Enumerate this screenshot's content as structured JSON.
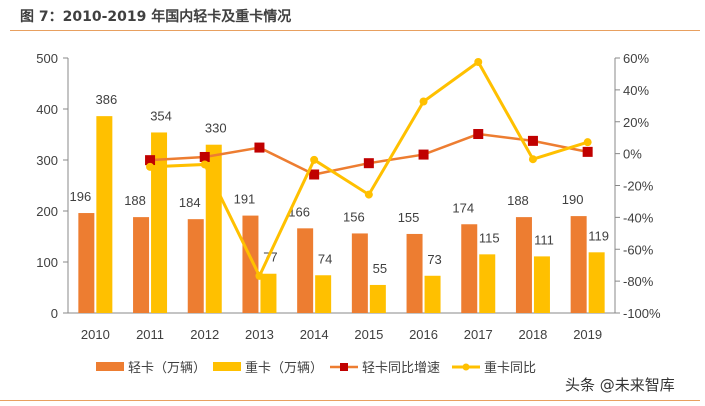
{
  "title": "图 7：2010-2019 年国内轻卡及重卡情况",
  "watermark": "头条 @未来智库",
  "chart_data": {
    "type": "bar+line",
    "title": "图 7：2010-2019 年国内轻卡及重卡情况",
    "categories": [
      "2010",
      "2011",
      "2012",
      "2013",
      "2014",
      "2015",
      "2016",
      "2017",
      "2018",
      "2019"
    ],
    "y_left": {
      "range": [
        0,
        500
      ],
      "ticks": [
        0,
        100,
        200,
        300,
        400,
        500
      ]
    },
    "y_right": {
      "range": [
        -100,
        60
      ],
      "ticks": [
        "-100%",
        "-80%",
        "-60%",
        "-40%",
        "-20%",
        "0%",
        "20%",
        "40%",
        "60%"
      ]
    },
    "grid": false,
    "legend_position": "bottom",
    "series": [
      {
        "name": "轻卡（万辆）",
        "type": "bar",
        "axis": "left",
        "color": "#ED7D31",
        "values": [
          196,
          188,
          184,
          191,
          166,
          156,
          155,
          174,
          188,
          190
        ]
      },
      {
        "name": "重卡（万辆）",
        "type": "bar",
        "axis": "left",
        "color": "#FFC000",
        "values": [
          386,
          354,
          330,
          77,
          74,
          55,
          73,
          115,
          111,
          119
        ]
      },
      {
        "name": "轻卡同比增速",
        "type": "line",
        "axis": "right",
        "color": "#ED7D31",
        "marker_color": "#C00000",
        "marker": "square",
        "values": [
          null,
          -4.1,
          -2.1,
          3.8,
          -13.1,
          -6.0,
          -0.6,
          12.3,
          8.0,
          1.1
        ]
      },
      {
        "name": "重卡同比",
        "type": "line",
        "axis": "right",
        "color": "#FFC000",
        "marker": "circle",
        "values": [
          null,
          -8.3,
          -6.8,
          -76.7,
          -3.9,
          -25.7,
          32.7,
          57.5,
          -3.5,
          7.2
        ]
      }
    ]
  }
}
